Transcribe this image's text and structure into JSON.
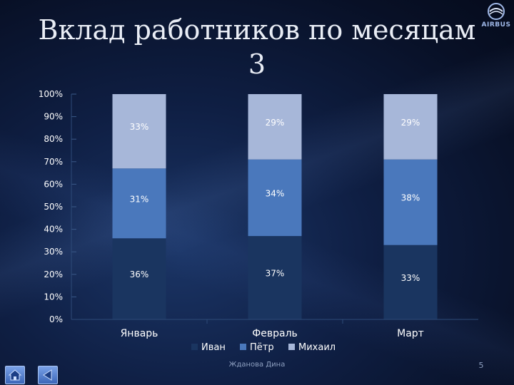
{
  "slide": {
    "title": "Вклад работников по месяцам 3",
    "logo_text": "AIRBUS",
    "footer": "Жданова Дина",
    "page_number": "5"
  },
  "icons": {
    "home": "home-icon",
    "back": "back-arrow-icon",
    "logo": "airbus-logo-icon"
  },
  "chart_data": {
    "type": "bar",
    "stacked": true,
    "percent": true,
    "categories": [
      "Январь",
      "Февраль",
      "Март"
    ],
    "series": [
      {
        "name": "Иван",
        "values": [
          36,
          37,
          33
        ],
        "labels": [
          "36%",
          "37%",
          "33%"
        ],
        "color": "#1a3560"
      },
      {
        "name": "Пётр",
        "values": [
          31,
          34,
          38
        ],
        "labels": [
          "31%",
          "34%",
          "38%"
        ],
        "color": "#4a78bc"
      },
      {
        "name": "Михаил",
        "values": [
          33,
          29,
          29
        ],
        "labels": [
          "33%",
          "29%",
          "29%"
        ],
        "color": "#a7b7d9"
      }
    ],
    "yticks": [
      "0%",
      "10%",
      "20%",
      "30%",
      "40%",
      "50%",
      "60%",
      "70%",
      "80%",
      "90%",
      "100%"
    ],
    "ylim": [
      0,
      100
    ],
    "legend_position": "bottom",
    "grid": false
  }
}
